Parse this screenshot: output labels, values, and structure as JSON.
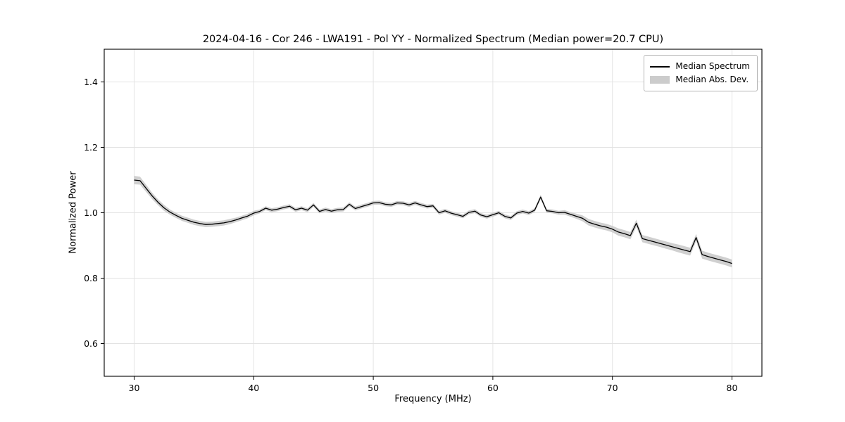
{
  "title": "2024-04-16 - Cor 246 - LWA191 - Pol YY - Normalized Spectrum (Median power=20.7 CPU)",
  "colors": {
    "line": "#000000",
    "band": "#c8c8c8",
    "grid": "#e2e2e2",
    "axis": "#000000"
  },
  "legend": {
    "items": [
      {
        "label": "Median Spectrum",
        "swatch": "line"
      },
      {
        "label": "Median Abs. Dev.",
        "swatch": "band"
      }
    ]
  },
  "chart_data": {
    "type": "line",
    "title": "2024-04-16 - Cor 246 - LWA191 - Pol YY - Normalized Spectrum (Median power=20.7 CPU)",
    "xlabel": "Frequency (MHz)",
    "ylabel": "Normalized Power",
    "xlim": [
      27.5,
      82.5
    ],
    "ylim": [
      0.5,
      1.5
    ],
    "xticks": [
      30,
      40,
      50,
      60,
      70,
      80
    ],
    "yticks": [
      0.6,
      0.8,
      1.0,
      1.2,
      1.4
    ],
    "grid": true,
    "legend_position": "upper right",
    "x": [
      30,
      30.5,
      31,
      31.5,
      32,
      32.5,
      33,
      33.5,
      34,
      34.5,
      35,
      35.5,
      36,
      36.5,
      37,
      37.5,
      38,
      38.5,
      39,
      39.5,
      40,
      40.5,
      41,
      41.5,
      42,
      42.5,
      43,
      43.5,
      44,
      44.5,
      45,
      45.5,
      46,
      46.5,
      47,
      47.5,
      48,
      48.5,
      49,
      49.5,
      50,
      50.5,
      51,
      51.5,
      52,
      52.5,
      53,
      53.5,
      54,
      54.5,
      55,
      55.5,
      56,
      56.5,
      57,
      57.5,
      58,
      58.5,
      59,
      59.5,
      60,
      60.5,
      61,
      61.5,
      62,
      62.5,
      63,
      63.5,
      64,
      64.5,
      65,
      65.5,
      66,
      66.5,
      67,
      67.5,
      68,
      68.5,
      69,
      69.5,
      70,
      70.5,
      71,
      71.5,
      72,
      72.5,
      73,
      73.5,
      74,
      74.5,
      75,
      75.5,
      76,
      76.5,
      77,
      77.5,
      78,
      78.5,
      79,
      79.5,
      80
    ],
    "series": [
      {
        "name": "Median Spectrum",
        "values": [
          1.1,
          1.098,
          1.075,
          1.052,
          1.032,
          1.015,
          1.002,
          0.992,
          0.983,
          0.977,
          0.971,
          0.967,
          0.964,
          0.965,
          0.967,
          0.969,
          0.973,
          0.978,
          0.984,
          0.99,
          0.999,
          1.004,
          1.014,
          1.008,
          1.011,
          1.016,
          1.02,
          1.009,
          1.014,
          1.008,
          1.024,
          1.004,
          1.01,
          1.005,
          1.009,
          1.01,
          1.026,
          1.013,
          1.019,
          1.024,
          1.03,
          1.031,
          1.026,
          1.024,
          1.03,
          1.029,
          1.024,
          1.03,
          1.024,
          1.019,
          1.021,
          1.0,
          1.006,
          0.999,
          0.994,
          0.989,
          1.001,
          1.005,
          0.993,
          0.988,
          0.994,
          1.0,
          0.989,
          0.984,
          0.999,
          1.004,
          0.999,
          1.008,
          1.048,
          1.006,
          1.004,
          1.0,
          1.001,
          0.995,
          0.989,
          0.983,
          0.971,
          0.965,
          0.96,
          0.956,
          0.95,
          0.941,
          0.936,
          0.93,
          0.968,
          0.921,
          0.916,
          0.911,
          0.906,
          0.901,
          0.896,
          0.891,
          0.886,
          0.881,
          0.924,
          0.872,
          0.866,
          0.861,
          0.856,
          0.851,
          0.845
        ]
      }
    ],
    "mad": [
      0.013,
      0.012,
      0.011,
      0.01,
      0.009,
      0.009,
      0.008,
      0.008,
      0.008,
      0.008,
      0.008,
      0.008,
      0.008,
      0.008,
      0.008,
      0.008,
      0.008,
      0.007,
      0.007,
      0.007,
      0.007,
      0.006,
      0.006,
      0.006,
      0.006,
      0.006,
      0.006,
      0.006,
      0.006,
      0.006,
      0.006,
      0.006,
      0.006,
      0.006,
      0.006,
      0.006,
      0.006,
      0.006,
      0.006,
      0.006,
      0.006,
      0.006,
      0.006,
      0.006,
      0.006,
      0.006,
      0.006,
      0.006,
      0.006,
      0.006,
      0.006,
      0.006,
      0.006,
      0.006,
      0.006,
      0.006,
      0.006,
      0.006,
      0.006,
      0.006,
      0.006,
      0.006,
      0.006,
      0.006,
      0.006,
      0.006,
      0.006,
      0.006,
      0.007,
      0.006,
      0.006,
      0.006,
      0.007,
      0.007,
      0.008,
      0.009,
      0.01,
      0.01,
      0.01,
      0.01,
      0.01,
      0.011,
      0.011,
      0.011,
      0.011,
      0.011,
      0.011,
      0.011,
      0.011,
      0.011,
      0.011,
      0.012,
      0.012,
      0.012,
      0.011,
      0.012,
      0.012,
      0.012,
      0.012,
      0.012,
      0.012
    ]
  }
}
